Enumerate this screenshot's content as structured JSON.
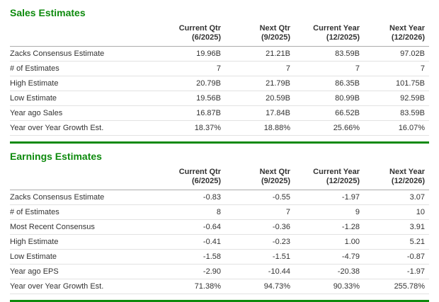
{
  "colors": {
    "accent_green": "#0d8a0d",
    "header_rule": "#ababab",
    "row_rule": "#e2e2e2",
    "text": "#333333"
  },
  "columns": [
    {
      "label": "Current Qtr",
      "period": "(6/2025)"
    },
    {
      "label": "Next Qtr",
      "period": "(9/2025)"
    },
    {
      "label": "Current Year",
      "period": "(12/2025)"
    },
    {
      "label": "Next Year",
      "period": "(12/2026)"
    }
  ],
  "sales": {
    "title": "Sales Estimates",
    "rows": [
      {
        "label": "Zacks Consensus Estimate",
        "values": [
          "19.96B",
          "21.21B",
          "83.59B",
          "97.02B"
        ]
      },
      {
        "label": "# of Estimates",
        "values": [
          "7",
          "7",
          "7",
          "7"
        ]
      },
      {
        "label": "High Estimate",
        "values": [
          "20.79B",
          "21.79B",
          "86.35B",
          "101.75B"
        ]
      },
      {
        "label": "Low Estimate",
        "values": [
          "19.56B",
          "20.59B",
          "80.99B",
          "92.59B"
        ]
      },
      {
        "label": "Year ago Sales",
        "values": [
          "16.87B",
          "17.84B",
          "66.52B",
          "83.59B"
        ]
      },
      {
        "label": "Year over Year Growth Est.",
        "values": [
          "18.37%",
          "18.88%",
          "25.66%",
          "16.07%"
        ]
      }
    ]
  },
  "earnings": {
    "title": "Earnings Estimates",
    "rows": [
      {
        "label": "Zacks Consensus Estimate",
        "values": [
          "-0.83",
          "-0.55",
          "-1.97",
          "3.07"
        ]
      },
      {
        "label": "# of Estimates",
        "values": [
          "8",
          "7",
          "9",
          "10"
        ]
      },
      {
        "label": "Most Recent Consensus",
        "values": [
          "-0.64",
          "-0.36",
          "-1.28",
          "3.91"
        ]
      },
      {
        "label": "High Estimate",
        "values": [
          "-0.41",
          "-0.23",
          "1.00",
          "5.21"
        ]
      },
      {
        "label": "Low Estimate",
        "values": [
          "-1.58",
          "-1.51",
          "-4.79",
          "-0.87"
        ]
      },
      {
        "label": "Year ago EPS",
        "values": [
          "-2.90",
          "-10.44",
          "-20.38",
          "-1.97"
        ]
      },
      {
        "label": "Year over Year Growth Est.",
        "values": [
          "71.38%",
          "94.73%",
          "90.33%",
          "255.78%"
        ]
      }
    ]
  }
}
